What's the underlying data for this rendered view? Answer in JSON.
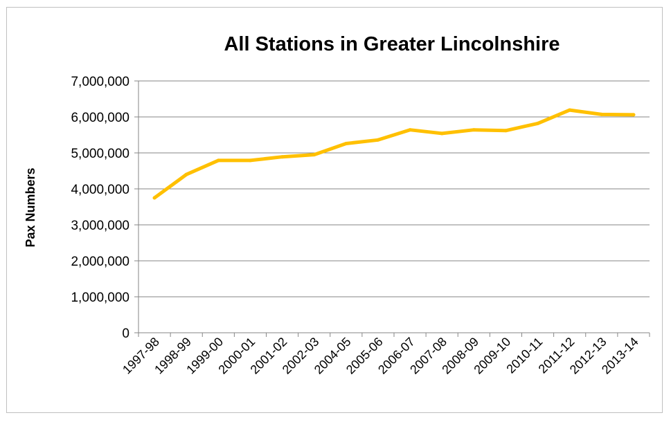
{
  "chart_data": {
    "type": "line",
    "title": "All Stations in Greater Lincolnshire",
    "xlabel": "",
    "ylabel": "Pax Numbers",
    "ylim": [
      0,
      7000000
    ],
    "yticks": [
      "0",
      "1,000,000",
      "2,000,000",
      "3,000,000",
      "4,000,000",
      "5,000,000",
      "6,000,000",
      "7,000,000"
    ],
    "grid": true,
    "legend": "none",
    "categories": [
      "1997-98",
      "1998-99",
      "1999-00",
      "2000-01",
      "2001-02",
      "2002-03",
      "2004-05",
      "2005-06",
      "2006-07",
      "2007-08",
      "2008-09",
      "2009-10",
      "2010-11",
      "2011-12",
      "2012-13",
      "2013-14"
    ],
    "series": [
      {
        "values": [
          3750000,
          4400000,
          4790000,
          4790000,
          4890000,
          4950000,
          5260000,
          5360000,
          5640000,
          5540000,
          5640000,
          5620000,
          5820000,
          6190000,
          6070000,
          6060000
        ],
        "color": "#ffc000"
      }
    ]
  }
}
